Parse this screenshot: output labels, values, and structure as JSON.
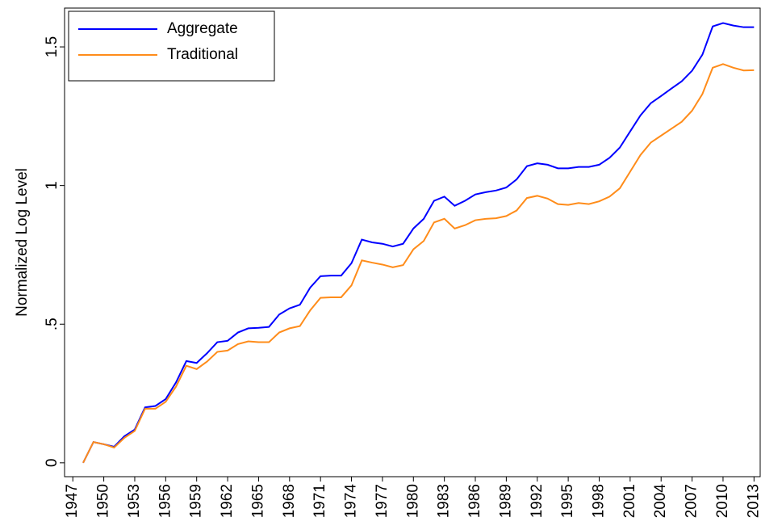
{
  "chart_data": {
    "type": "line",
    "y_label": "Normalized Log Level",
    "x": [
      1948,
      1949,
      1950,
      1951,
      1952,
      1953,
      1954,
      1955,
      1956,
      1957,
      1958,
      1959,
      1960,
      1961,
      1962,
      1963,
      1964,
      1965,
      1966,
      1967,
      1968,
      1969,
      1970,
      1971,
      1972,
      1973,
      1974,
      1975,
      1976,
      1977,
      1978,
      1979,
      1980,
      1981,
      1982,
      1983,
      1984,
      1985,
      1986,
      1987,
      1988,
      1989,
      1990,
      1991,
      1992,
      1993,
      1994,
      1995,
      1996,
      1997,
      1998,
      1999,
      2000,
      2001,
      2002,
      2003,
      2004,
      2005,
      2006,
      2007,
      2008,
      2009,
      2010,
      2011,
      2012,
      2013
    ],
    "series": [
      {
        "name": "Aggregate",
        "color": "#0000ff",
        "values": [
          0,
          0.075,
          0.067,
          0.058,
          0.096,
          0.12,
          0.2,
          0.205,
          0.23,
          0.29,
          0.367,
          0.36,
          0.395,
          0.435,
          0.44,
          0.47,
          0.485,
          0.487,
          0.49,
          0.535,
          0.557,
          0.57,
          0.632,
          0.673,
          0.675,
          0.675,
          0.72,
          0.805,
          0.795,
          0.79,
          0.78,
          0.79,
          0.845,
          0.88,
          0.945,
          0.96,
          0.927,
          0.945,
          0.968,
          0.976,
          0.982,
          0.993,
          1.022,
          1.07,
          1.08,
          1.075,
          1.062,
          1.062,
          1.067,
          1.067,
          1.075,
          1.1,
          1.137,
          1.195,
          1.253,
          1.297,
          1.323,
          1.35,
          1.376,
          1.414,
          1.472,
          1.574,
          1.586,
          1.577,
          1.571,
          1.571
        ]
      },
      {
        "name": "Traditional",
        "color": "#ff8c1a",
        "values": [
          0,
          0.075,
          0.067,
          0.055,
          0.09,
          0.115,
          0.195,
          0.195,
          0.22,
          0.275,
          0.35,
          0.338,
          0.365,
          0.4,
          0.405,
          0.428,
          0.438,
          0.435,
          0.435,
          0.47,
          0.485,
          0.493,
          0.55,
          0.595,
          0.597,
          0.597,
          0.64,
          0.73,
          0.722,
          0.715,
          0.705,
          0.713,
          0.77,
          0.8,
          0.867,
          0.88,
          0.845,
          0.857,
          0.875,
          0.88,
          0.882,
          0.89,
          0.91,
          0.955,
          0.963,
          0.953,
          0.933,
          0.93,
          0.937,
          0.933,
          0.943,
          0.96,
          0.99,
          1.05,
          1.11,
          1.155,
          1.18,
          1.205,
          1.23,
          1.27,
          1.33,
          1.425,
          1.438,
          1.425,
          1.415,
          1.416
        ]
      }
    ],
    "xlim": [
      1946.2,
      2013.6
    ],
    "xticks": [
      1947,
      1950,
      1953,
      1956,
      1959,
      1962,
      1965,
      1968,
      1971,
      1974,
      1977,
      1980,
      1983,
      1986,
      1989,
      1992,
      1995,
      1998,
      2001,
      2004,
      2007,
      2010,
      2013
    ],
    "ylim": [
      -0.05,
      1.64
    ],
    "yticks": [
      0,
      {
        "value": 0.5,
        "label": ".5"
      },
      1,
      1.5
    ],
    "grid": false,
    "legend": "upper left"
  }
}
